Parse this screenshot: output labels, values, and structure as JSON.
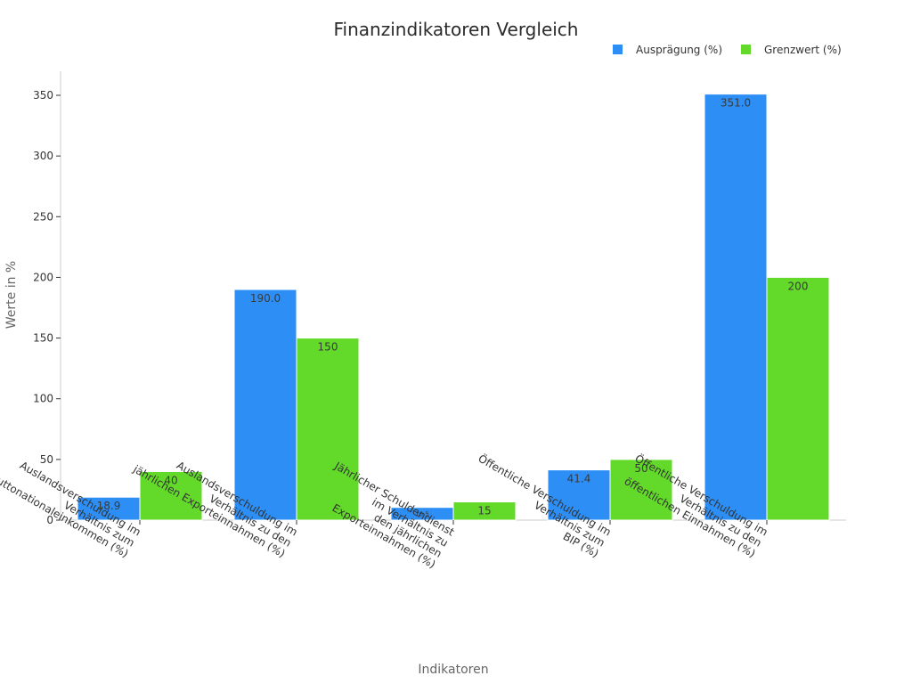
{
  "chart_data": {
    "type": "bar",
    "title": "Finanzindikatoren Vergleich",
    "xlabel": "Indikatoren",
    "ylabel": "Werte in %",
    "ylim": [
      0,
      370
    ],
    "yticks": [
      0,
      50,
      100,
      150,
      200,
      250,
      300,
      350
    ],
    "grid": false,
    "legend_position": "top-right",
    "categories": [
      [
        "Auslandsverschuldung im",
        "Verhältnis zum",
        "Bruttonationaleinkommen (%)"
      ],
      [
        "Auslandsverschuldung im",
        "Verhältnis zu den",
        "jährlichen Exporteinnahmen (%)"
      ],
      [
        "Jährlicher Schuldendienst",
        "im Verhältnis zu",
        "den jährlichen",
        "Exporteinnahmen (%)"
      ],
      [
        "Öffentliche Verschuldung im",
        "Verhältnis zum",
        "BIP (%)"
      ],
      [
        "Öffentliche Verschuldung im",
        "Verhältnis zu den",
        "öffentlichen Einnahmen (%)"
      ]
    ],
    "series": [
      {
        "name": "Ausprägung (%)",
        "color": "#2d8ff5",
        "values": [
          18.9,
          190.0,
          10.5,
          41.4,
          351.0
        ],
        "labels": [
          "18.9",
          "190.0",
          "10.5",
          "41.4",
          "351.0"
        ]
      },
      {
        "name": "Grenzwert (%)",
        "color": "#63d92a",
        "values": [
          40,
          150,
          15,
          50,
          200
        ],
        "labels": [
          "40",
          "150",
          "15",
          "50",
          "200"
        ]
      }
    ]
  }
}
